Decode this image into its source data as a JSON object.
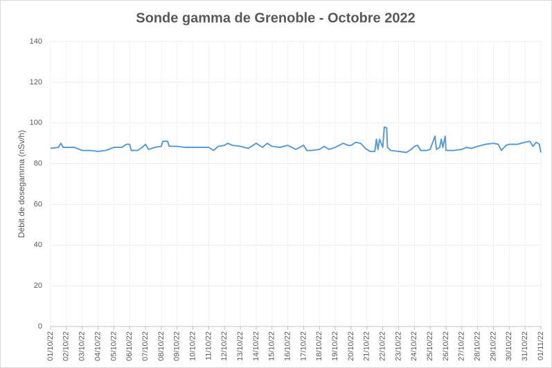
{
  "chart_data": {
    "type": "line",
    "title": "Sonde gamma de Grenoble - Octobre 2022",
    "y_label": "Débit de dosegamma (nSv/h)",
    "x": [
      0,
      0.5,
      0.65,
      0.8,
      1,
      1.5,
      2,
      2.5,
      3,
      3.5,
      4,
      4.5,
      4.8,
      5,
      5.1,
      5.5,
      5.8,
      6,
      6.2,
      6.6,
      7,
      7.1,
      7.4,
      7.5,
      8,
      8.5,
      9,
      9.5,
      10,
      10.3,
      10.6,
      11,
      11.2,
      11.5,
      12,
      12.5,
      13,
      13.4,
      13.7,
      14,
      14.5,
      15,
      15.5,
      16,
      16.2,
      16.5,
      17,
      17.3,
      17.6,
      18,
      18.5,
      18.8,
      19,
      19.3,
      19.6,
      19.9,
      20.2,
      20.5,
      20.6,
      20.7,
      20.8,
      21,
      21.1,
      21.25,
      21.3,
      21.5,
      22,
      22.5,
      22.8,
      23,
      23.2,
      23.4,
      23.8,
      24,
      24.3,
      24.4,
      24.6,
      24.7,
      24.8,
      24.95,
      25,
      25.5,
      26,
      26.3,
      26.6,
      27,
      27.5,
      28,
      28.3,
      28.5,
      28.8,
      29,
      29.5,
      30,
      30.3,
      30.5,
      30.7,
      30.9,
      31
    ],
    "series": [
      {
        "name": "Débit de dose",
        "color": "#5b9bd5",
        "values": [
          87.5,
          88,
          90,
          88,
          88,
          88,
          86.5,
          86.5,
          86,
          86.5,
          88,
          88,
          89.5,
          89.5,
          86.5,
          86.5,
          88,
          89.5,
          87,
          88,
          88.5,
          91,
          91,
          88.5,
          88.5,
          88,
          88,
          88,
          88,
          86.5,
          88.5,
          89,
          90,
          89,
          88.5,
          87.5,
          90,
          88,
          90,
          88.5,
          88,
          89,
          87,
          89,
          86.5,
          86.5,
          87,
          88.5,
          87,
          88,
          90,
          89,
          89,
          90.5,
          90,
          87.5,
          86,
          86,
          92,
          87,
          92,
          88,
          98,
          97.5,
          88,
          86.5,
          86,
          85.5,
          87,
          88.5,
          89,
          86.5,
          86.5,
          87,
          93.5,
          87,
          88,
          92,
          88,
          93.5,
          86.5,
          86.5,
          87,
          88,
          87.5,
          88.5,
          89.5,
          90,
          89.5,
          86.5,
          89,
          89.5,
          89.5,
          90.5,
          91,
          88.5,
          90.5,
          89.5,
          85.5
        ]
      }
    ],
    "xlim": [
      0,
      31
    ],
    "xticks": [
      {
        "value": 0,
        "label": "01/10/22"
      },
      {
        "value": 1,
        "label": "02/10/22"
      },
      {
        "value": 2,
        "label": "03/10/22"
      },
      {
        "value": 3,
        "label": "04/10/22"
      },
      {
        "value": 4,
        "label": "05/10/22"
      },
      {
        "value": 5,
        "label": "06/10/22"
      },
      {
        "value": 6,
        "label": "07/10/22"
      },
      {
        "value": 7,
        "label": "08/10/22"
      },
      {
        "value": 8,
        "label": "09/10/22"
      },
      {
        "value": 9,
        "label": "10/10/22"
      },
      {
        "value": 10,
        "label": "11/10/22"
      },
      {
        "value": 11,
        "label": "12/10/22"
      },
      {
        "value": 12,
        "label": "13/10/22"
      },
      {
        "value": 13,
        "label": "14/10/22"
      },
      {
        "value": 14,
        "label": "15/10/22"
      },
      {
        "value": 15,
        "label": "16/10/22"
      },
      {
        "value": 16,
        "label": "17/10/22"
      },
      {
        "value": 17,
        "label": "18/10/22"
      },
      {
        "value": 18,
        "label": "19/10/22"
      },
      {
        "value": 19,
        "label": "20/10/22"
      },
      {
        "value": 20,
        "label": "21/10/22"
      },
      {
        "value": 21,
        "label": "22/10/22"
      },
      {
        "value": 22,
        "label": "23/10/22"
      },
      {
        "value": 23,
        "label": "24/10/22"
      },
      {
        "value": 24,
        "label": "25/10/22"
      },
      {
        "value": 25,
        "label": "26/10/22"
      },
      {
        "value": 26,
        "label": "27/10/22"
      },
      {
        "value": 27,
        "label": "28/10/22"
      },
      {
        "value": 28,
        "label": "29/10/22"
      },
      {
        "value": 29,
        "label": "30/10/22"
      },
      {
        "value": 30,
        "label": "31/10/22"
      },
      {
        "value": 31,
        "label": "01/11/22"
      }
    ],
    "ylim": [
      0,
      140
    ],
    "yticks": [
      0,
      20,
      40,
      60,
      80,
      100,
      120,
      140
    ],
    "grid": true
  }
}
